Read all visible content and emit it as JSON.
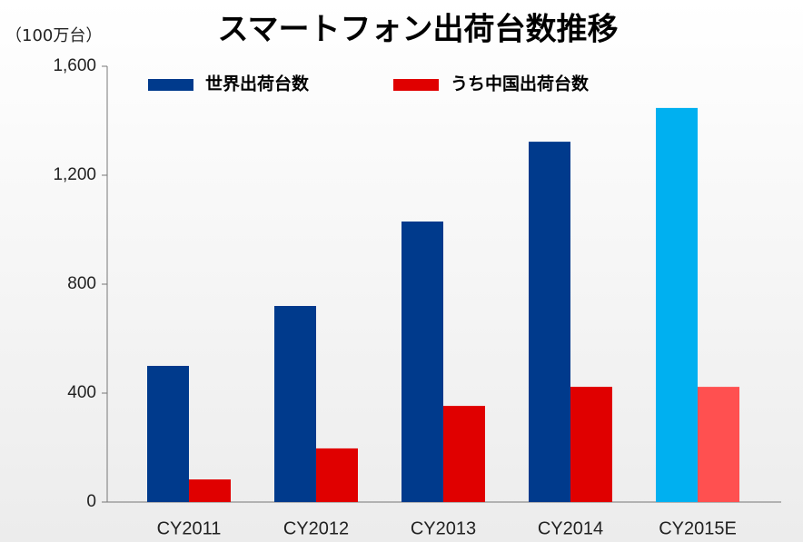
{
  "chart_data": {
    "type": "bar",
    "title": "スマートフォン出荷台数推移",
    "y_label": "（100万台）",
    "categories": [
      "CY2011",
      "CY2012",
      "CY2013",
      "CY2014",
      "CY2015E"
    ],
    "series": [
      {
        "name": "世界出荷台数",
        "color": "#003a8c",
        "colors": [
          "#003a8c",
          "#003a8c",
          "#003a8c",
          "#003a8c",
          "#00b0f0"
        ],
        "values": [
          500,
          720,
          1030,
          1323,
          1447
        ]
      },
      {
        "name": "うち中国出荷台数",
        "color": "#e00000",
        "colors": [
          "#e00000",
          "#e00000",
          "#e00000",
          "#e00000",
          "#ff5050"
        ],
        "values": [
          83,
          197,
          353,
          423,
          423
        ]
      }
    ],
    "ylim": [
      0,
      1600
    ],
    "yticks": [
      0,
      400,
      800,
      {
        "value": 1200,
        "label": "1,200"
      },
      {
        "value": 1600,
        "label": "1,600"
      }
    ],
    "grid": false
  }
}
